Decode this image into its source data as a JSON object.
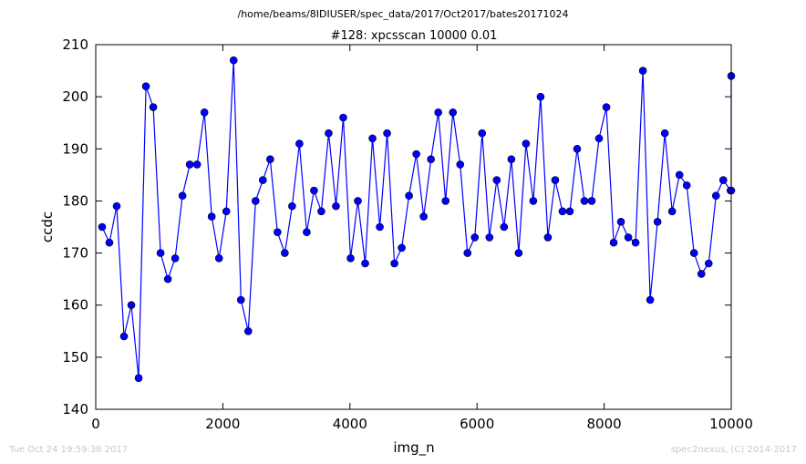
{
  "figure": {
    "suptitle": "/home/beams/8IDIUSER/spec_data/2017/Oct2017/bates20171024",
    "footer_left": "Tue Oct 24 19:59:38 2017",
    "footer_right": "spec2nexus, (C) 2014-2017"
  },
  "chart_data": {
    "type": "line",
    "title": "#128: xpcsscan 10000 0.01",
    "xlabel": "img_n",
    "ylabel": "ccdc",
    "xlim": [
      0,
      10000
    ],
    "ylim": [
      140,
      210
    ],
    "xticks": [
      0,
      2000,
      4000,
      6000,
      8000,
      10000
    ],
    "yticks": [
      140,
      150,
      160,
      170,
      180,
      190,
      200,
      210
    ],
    "grid": false,
    "marker": "circle",
    "color": "#0000ff",
    "series": [
      {
        "x": [
          100,
          215,
          330,
          445,
          560,
          675,
          790,
          905,
          1020,
          1135,
          1250,
          1365,
          1480,
          1595,
          1710,
          1825,
          1940,
          2055,
          2170,
          2285,
          2400,
          2515,
          2630,
          2745,
          2860,
          2975,
          3090,
          3205,
          3320,
          3435,
          3550,
          3665,
          3780,
          3895,
          4010,
          4125,
          4240,
          4355,
          4470,
          4585,
          4700,
          4815,
          4930,
          5045,
          5160,
          5275,
          5390,
          5505,
          5620,
          5735,
          5850,
          5965,
          6080,
          6195,
          6310,
          6425,
          6540,
          6655,
          6770,
          6885,
          7000,
          7115,
          7230,
          7345,
          7460,
          7575,
          7690,
          7805,
          7920,
          8035,
          8150,
          8265,
          8380,
          8495,
          8610,
          8725,
          8840,
          8955,
          9070,
          9185,
          9300,
          9415,
          9530,
          9645,
          9760,
          9875,
          9990,
          10000,
          10000
        ],
        "y": [
          175,
          172,
          179,
          154,
          160,
          146,
          202,
          198,
          170,
          165,
          169,
          181,
          187,
          187,
          197,
          177,
          169,
          178,
          207,
          161,
          155,
          180,
          184,
          188,
          174,
          170,
          179,
          191,
          174,
          182,
          178,
          193,
          179,
          196,
          169,
          180,
          168,
          192,
          175,
          193,
          168,
          171,
          181,
          189,
          177,
          188,
          197,
          180,
          197,
          187,
          170,
          173,
          193,
          173,
          184,
          175,
          188,
          170,
          191,
          180,
          200,
          173,
          184,
          178,
          178,
          190,
          180,
          180,
          192,
          198,
          172,
          176,
          173,
          172,
          205,
          161,
          176,
          193,
          178,
          185,
          183,
          170,
          166,
          168,
          181,
          184,
          182,
          182,
          204
        ]
      }
    ]
  }
}
